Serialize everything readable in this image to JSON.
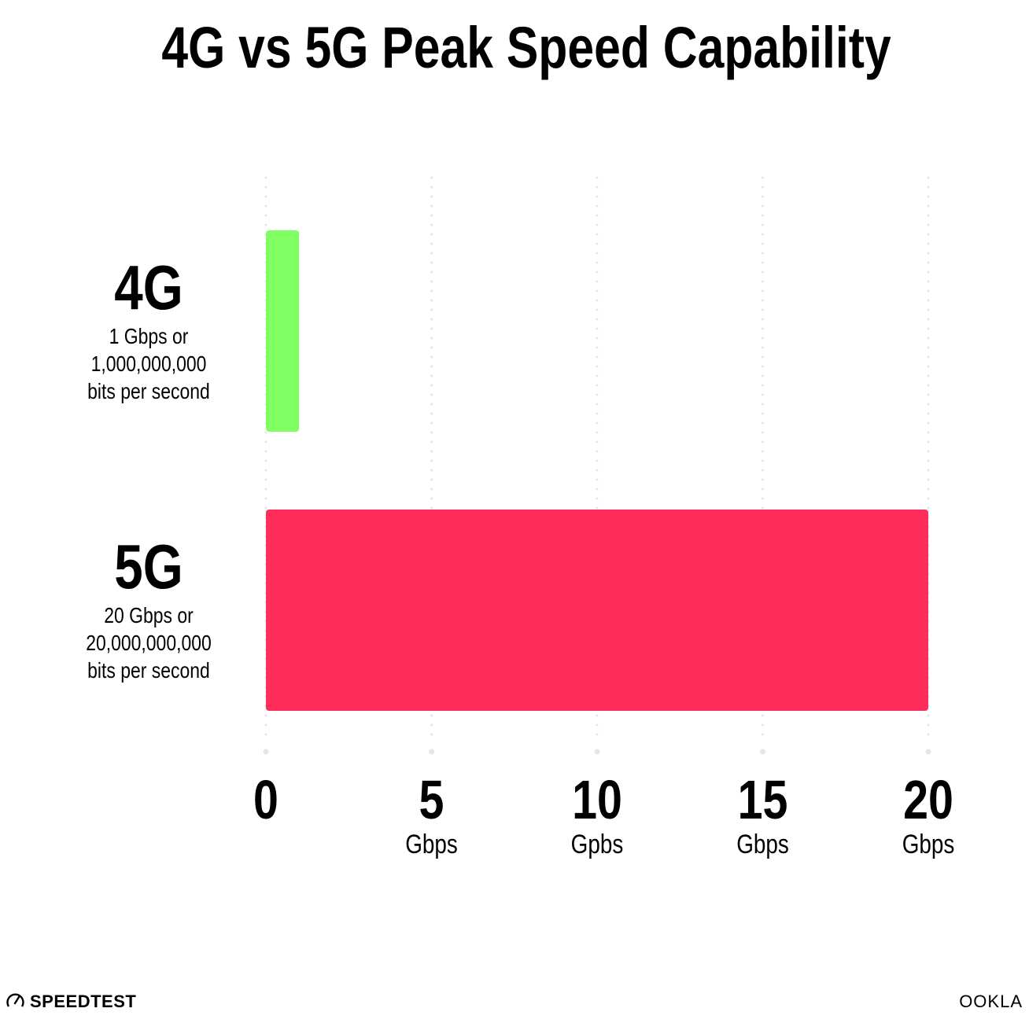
{
  "chart_data": {
    "type": "bar",
    "orientation": "horizontal",
    "title": "4G vs 5G Peak Speed Capability",
    "categories": [
      "4G",
      "5G"
    ],
    "category_notes": [
      [
        "1 Gbps or",
        "1,000,000,000",
        "bits per second"
      ],
      [
        "20 Gbps or",
        "20,000,000,000",
        "bits per second"
      ]
    ],
    "values": [
      1,
      20
    ],
    "colors": [
      "#80ff62",
      "#ff2d5a"
    ],
    "xlim": [
      0,
      20
    ],
    "xticks": [
      0,
      5,
      10,
      15,
      20
    ],
    "xtick_labels": [
      "0",
      "5",
      "10",
      "15",
      "20"
    ],
    "xtick_units": [
      "",
      "Gbps",
      "Gpbs",
      "Gbps",
      "Gbps"
    ],
    "grid": "vertical dotted",
    "grid_color": "#e3e5ef"
  },
  "branding": {
    "left_logo": "SPEEDTEST",
    "right_logo": "OOKLA"
  }
}
